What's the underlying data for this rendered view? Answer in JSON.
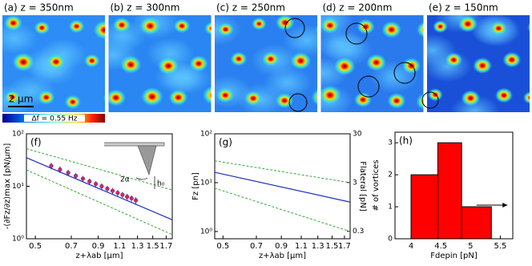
{
  "image_panels": [
    {
      "label": "(a) z = 350nm"
    },
    {
      "label": "(b) z = 300nm"
    },
    {
      "label": "(c) z = 250nm"
    },
    {
      "label": "(d) z = 200nm"
    },
    {
      "label": "(e) z = 150nm"
    }
  ],
  "scale_bar": "2 μm",
  "colorbar_label": "Δf = 0.55 Hz",
  "chart_data": [
    {
      "type": "line",
      "title": "(f)",
      "x_label": "z+λab [μm]",
      "y_label": "-(∂Fz/∂z)max [pN/μm]",
      "log_x": true,
      "log_y": true,
      "xlim": [
        0.46,
        1.8
      ],
      "xticks": [
        0.5,
        0.7,
        0.9,
        1.1,
        1.3,
        1.5,
        1.7
      ],
      "ylim": [
        1,
        100
      ],
      "yticks": [
        {
          "value": 1,
          "label": "10⁰"
        },
        {
          "value": 10,
          "label": "10¹"
        },
        {
          "value": 100,
          "label": "10²"
        }
      ],
      "annotations": [
        "2α",
        "h₀"
      ],
      "series": [
        {
          "style": "markers",
          "color": "#d8245a",
          "x": [
            0.58,
            0.63,
            0.68,
            0.73,
            0.78,
            0.83,
            0.88,
            0.93,
            0.98,
            1.03,
            1.08,
            1.13,
            1.18,
            1.23,
            1.28
          ],
          "values": [
            24.5,
            20.9,
            18.1,
            15.8,
            14.0,
            12.4,
            11.1,
            10.0,
            9.0,
            8.2,
            7.5,
            6.9,
            6.3,
            5.9,
            5.4
          ],
          "errors": [
            3.5,
            3,
            2.5,
            2,
            1.8,
            1.6,
            1.4,
            1.3,
            1.2,
            1.1,
            1,
            0.9,
            0.9,
            0.8,
            0.8
          ]
        },
        {
          "style": "solid",
          "color": "#1f2fbf",
          "x": [
            0.46,
            1.8
          ],
          "values": [
            35,
            2.3
          ]
        },
        {
          "style": "dashed",
          "color": "#22a022",
          "x": [
            0.46,
            1.8
          ],
          "values": [
            52,
            8.5
          ]
        },
        {
          "style": "dashed",
          "color": "#22a022",
          "x": [
            0.46,
            1.8
          ],
          "values": [
            20.5,
            1.2
          ]
        }
      ]
    },
    {
      "type": "line",
      "title": "(g)",
      "x_label": "z+λab [μm]",
      "y_label": "Fz [pn]",
      "y2_label": "Flateral [pN]",
      "log_x": true,
      "log_y": true,
      "xlim": [
        0.46,
        1.8
      ],
      "xticks": [
        0.5,
        0.7,
        0.9,
        1.1,
        1.3,
        1.5,
        1.7
      ],
      "ylim": [
        0.71,
        100
      ],
      "yticks": [
        {
          "value": 1,
          "label": "10⁰"
        },
        {
          "value": 10,
          "label": "10¹"
        },
        {
          "value": 100,
          "label": "10²"
        }
      ],
      "y2lim": [
        0.21,
        30
      ],
      "y2ticks": [
        0.3,
        3,
        30
      ],
      "series": [
        {
          "style": "solid",
          "color": "#1f2fbf",
          "x": [
            0.46,
            1.8
          ],
          "values": [
            16.3,
            4.0
          ]
        },
        {
          "style": "dashed",
          "color": "#22a022",
          "x": [
            0.46,
            1.8
          ],
          "values": [
            28,
            10
          ]
        },
        {
          "style": "dashed",
          "color": "#22a022",
          "x": [
            0.46,
            1.8
          ],
          "values": [
            7.7,
            1.0
          ]
        }
      ]
    },
    {
      "type": "histogram",
      "title": "(h)",
      "x_label": "Fdepin [pN]",
      "y_label": "# of vortices",
      "bins": [
        4.0,
        4.45,
        4.85,
        5.35
      ],
      "values": [
        2,
        3,
        1
      ],
      "color": "#ff0000",
      "xlim": [
        3.73,
        5.71
      ],
      "xticks": [
        4,
        4.5,
        5,
        5.5
      ],
      "ylim": [
        0,
        3.33
      ],
      "yticks": [
        0,
        1,
        2,
        3
      ]
    }
  ]
}
